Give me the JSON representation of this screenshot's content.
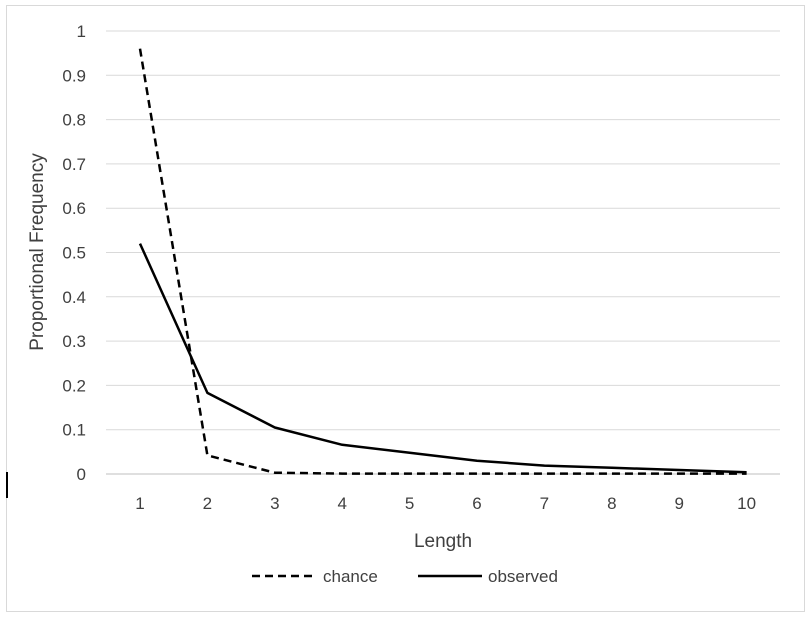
{
  "chart_data": {
    "type": "line",
    "title": "",
    "xlabel": "Length",
    "ylabel": "Proportional Frequency",
    "categories": [
      "1",
      "2",
      "3",
      "4",
      "5",
      "6",
      "7",
      "8",
      "9",
      "10"
    ],
    "ylim": [
      0,
      1
    ],
    "yticks": [
      "0",
      "0.1",
      "0.2",
      "0.3",
      "0.4",
      "0.5",
      "0.6",
      "0.7",
      "0.8",
      "0.9",
      "1"
    ],
    "grid": true,
    "legend_position": "bottom",
    "series": [
      {
        "name": "chance",
        "style": "dashed",
        "color": "#000000",
        "values": [
          0.96,
          0.042,
          0.003,
          0.001,
          0.001,
          0.001,
          0.001,
          0.001,
          0.001,
          0.001
        ]
      },
      {
        "name": "observed",
        "style": "solid",
        "color": "#000000",
        "values": [
          0.52,
          0.183,
          0.105,
          0.066,
          0.048,
          0.03,
          0.019,
          0.014,
          0.009,
          0.004
        ]
      }
    ]
  }
}
